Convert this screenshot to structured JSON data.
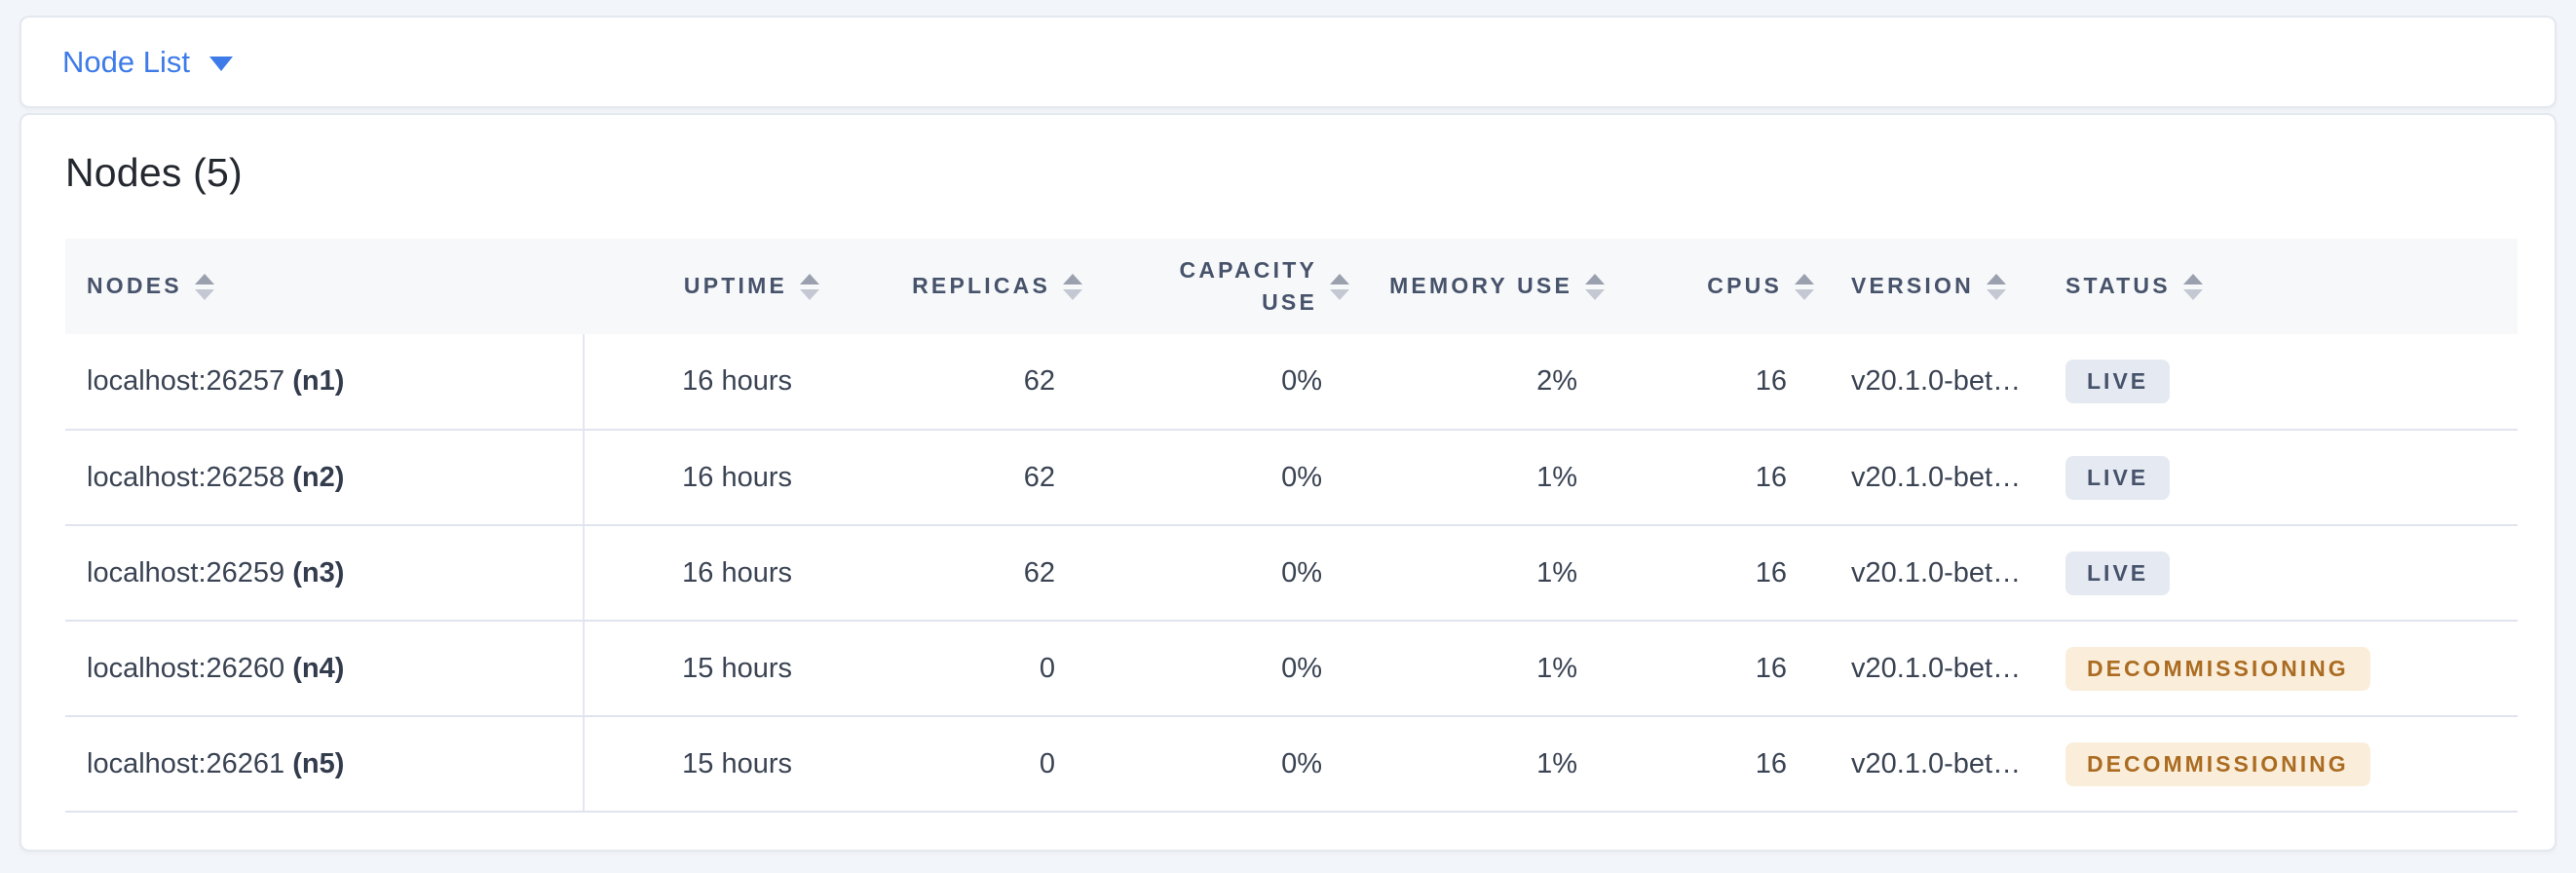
{
  "view_selector": {
    "label": "Node List"
  },
  "summary": {
    "title": "Nodes (5)"
  },
  "colors": {
    "link_blue": "#3d7be8",
    "badge_live_bg": "#e5e9f2",
    "badge_live_text": "#46536b",
    "badge_decommissioning_bg": "#faeedb",
    "badge_decommissioning_text": "#ab6c22"
  },
  "table": {
    "columns": {
      "nodes": "NODES",
      "uptime": "UPTIME",
      "replicas": "REPLICAS",
      "capacity_use": "CAPACITY USE",
      "memory_use": "MEMORY USE",
      "cpus": "CPUS",
      "version": "VERSION",
      "status": "STATUS"
    },
    "rows": [
      {
        "address": "localhost:26257",
        "node_id": "(n1)",
        "uptime": "16 hours",
        "replicas": "62",
        "capacity_use": "0%",
        "memory_use": "2%",
        "cpus": "16",
        "version": "v20.1.0-bet…",
        "status": "LIVE",
        "status_type": "live"
      },
      {
        "address": "localhost:26258",
        "node_id": "(n2)",
        "uptime": "16 hours",
        "replicas": "62",
        "capacity_use": "0%",
        "memory_use": "1%",
        "cpus": "16",
        "version": "v20.1.0-bet…",
        "status": "LIVE",
        "status_type": "live"
      },
      {
        "address": "localhost:26259",
        "node_id": "(n3)",
        "uptime": "16 hours",
        "replicas": "62",
        "capacity_use": "0%",
        "memory_use": "1%",
        "cpus": "16",
        "version": "v20.1.0-bet…",
        "status": "LIVE",
        "status_type": "live"
      },
      {
        "address": "localhost:26260",
        "node_id": "(n4)",
        "uptime": "15 hours",
        "replicas": "0",
        "capacity_use": "0%",
        "memory_use": "1%",
        "cpus": "16",
        "version": "v20.1.0-bet…",
        "status": "DECOMMISSIONING",
        "status_type": "decommissioning"
      },
      {
        "address": "localhost:26261",
        "node_id": "(n5)",
        "uptime": "15 hours",
        "replicas": "0",
        "capacity_use": "0%",
        "memory_use": "1%",
        "cpus": "16",
        "version": "v20.1.0-bet…",
        "status": "DECOMMISSIONING",
        "status_type": "decommissioning"
      }
    ]
  }
}
